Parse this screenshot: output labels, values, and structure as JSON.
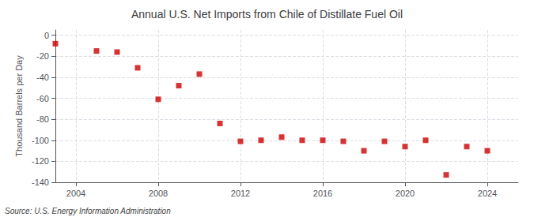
{
  "chart_data": {
    "type": "scatter",
    "title": "Annual U.S. Net Imports from Chile of Distillate Fuel Oil",
    "ylabel": "Thousand Barrels per Day",
    "annotations": [
      "Source: U.S. Energy Information Administration"
    ],
    "x": [
      2003,
      2005,
      2006,
      2007,
      2008,
      2009,
      2010,
      2011,
      2012,
      2013,
      2014,
      2015,
      2016,
      2017,
      2018,
      2019,
      2020,
      2021,
      2022,
      2023,
      2024
    ],
    "values": [
      -8,
      -15,
      -16,
      -31,
      -61,
      -48,
      -37,
      -84,
      -101,
      -100,
      -97,
      -100,
      -100,
      -101,
      -110,
      -101,
      -106,
      -100,
      -133,
      -106,
      -110
    ],
    "color": "#cc0000",
    "marker": "square",
    "xlim": [
      2003.0,
      2025.5
    ],
    "xticks": [
      2004,
      2008,
      2012,
      2016,
      2020,
      2024
    ],
    "ylim": [
      -140,
      5
    ],
    "yticks": [
      0,
      -20,
      -40,
      -60,
      -80,
      -100,
      -120,
      -140
    ],
    "grid": true
  }
}
